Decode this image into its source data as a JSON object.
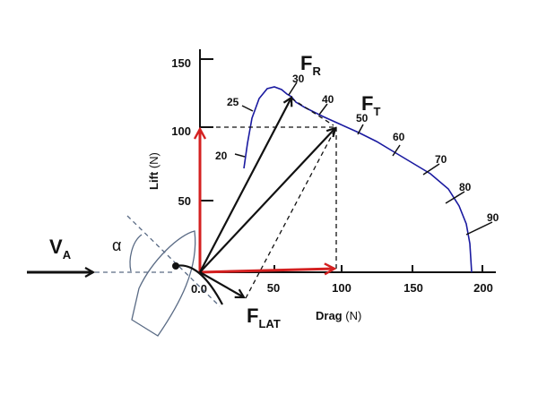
{
  "axes": {
    "x_label": "Drag",
    "x_unit": "(N)",
    "y_label": "Lift",
    "y_unit": "(N)",
    "x_ticks": [
      "50",
      "100",
      "150",
      "200"
    ],
    "y_ticks": [
      "50",
      "100",
      "150"
    ],
    "origin": "0.0"
  },
  "angle_labels": [
    "20",
    "25",
    "30",
    "40",
    "50",
    "60",
    "70",
    "80",
    "90"
  ],
  "vectors": {
    "apparent_wind": {
      "main": "V",
      "sub": "A"
    },
    "resultant": {
      "main": "F",
      "sub": "R"
    },
    "total": {
      "main": "F",
      "sub": "T"
    },
    "lateral": {
      "main": "F",
      "sub": "LAT"
    }
  },
  "angle_of_attack": "α",
  "colors": {
    "curve": "#1a1aa0",
    "component_arrows": "#d42020",
    "force_arrows": "#111111",
    "boat": "#5a6b85"
  }
}
